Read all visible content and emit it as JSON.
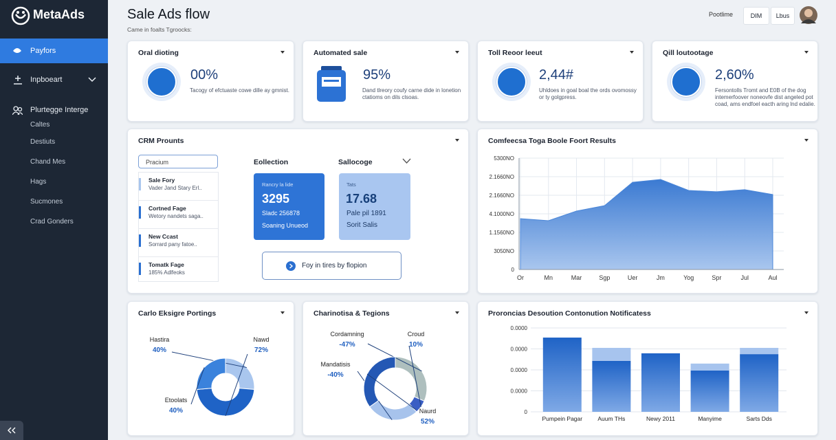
{
  "sidebar": {
    "logo": "MetaAds",
    "items": [
      "Payfors",
      "Inpboeart"
    ],
    "section": "Plurtegge Interge",
    "subitems": [
      "Caltes",
      "Destiuts",
      "Chand Mes",
      "Hags",
      "Sucmones",
      "Crad Gonders"
    ]
  },
  "header": {
    "title": "Sale Ads flow",
    "subtitle": "Came in foalts Tgroocks:",
    "status": "Pootlime",
    "buttons": [
      "DIM",
      "Lbus"
    ]
  },
  "kpis": [
    {
      "title": "Oral dioting",
      "value": "00%",
      "description": "Tacogy of efctuaste cowe dille ay gmnist."
    },
    {
      "title": "Automated sale",
      "value": "95%",
      "description": "Dand tlreory coufy carne dide in lonetion ctatioms on dils clsoas."
    },
    {
      "title": "Toll Reoor leeut",
      "value": "2,44#",
      "description": "Uhldoes in goal boal the ords ovomossy or ty golgpress."
    },
    {
      "title": "Qill loutootage",
      "value": "2,60%",
      "description": "Fersontolls Tromt and E0B of the dog intemerfoover noneovfe dist angeled pot coad, ams endfoel eacth aring lnd edalie."
    }
  ],
  "crm": {
    "title": "CRM Prounts",
    "search": "Pracium",
    "list": [
      {
        "title": "Sale Fory",
        "subtitle": "Vader Jand Stary Erl.."
      },
      {
        "title": "Cortned Fage",
        "subtitle": "Wetory nandets saga.."
      },
      {
        "title": "New Ccast",
        "subtitle": "Sorrard pany fatoe.."
      },
      {
        "title": "Tomatk Fage",
        "subtitle": "185% Adlfeoks"
      }
    ],
    "columns": [
      "Eollection",
      "Sallocoge"
    ],
    "tiles": [
      {
        "label": "Rancry la lide",
        "value": "3295",
        "line1": "Sladc 256878",
        "line2": "Soaning Unueod"
      },
      {
        "label": "Tats",
        "value": "17.68",
        "line1": "Pale pil 1891",
        "line2": "Sorit Salis"
      }
    ],
    "button": "Foy in tires by flopion"
  },
  "chart_data": [
    {
      "type": "area",
      "title": "Comfeecsa Toga Boole Foort Results",
      "categories": [
        "Or",
        "Mn",
        "Mar",
        "Sgp",
        "Uer",
        "Jm",
        "Yog",
        "Spr",
        "Jul",
        "Aul"
      ],
      "values": [
        2.74,
        2.63,
        3.15,
        3.44,
        4.7,
        4.85,
        4.26,
        4.19,
        4.3,
        4.04
      ],
      "color": "#4a86d8",
      "ylim": [
        0,
        6
      ],
      "yticks": [
        {
          "value": 0,
          "label": "0"
        },
        {
          "value": 1,
          "label": "3050NO"
        },
        {
          "value": 2,
          "label": "1.1560NO"
        },
        {
          "value": 3,
          "label": "4.1000NO"
        },
        {
          "value": 4,
          "label": "2.1660NO"
        },
        {
          "value": 5,
          "label": "2.1660NO"
        },
        {
          "value": 6,
          "label": "5300NO"
        }
      ],
      "grid": true
    },
    {
      "type": "donut",
      "title": "Carlo Eksigre Portings",
      "categories": [
        "Hastira",
        "Nawd",
        "Etoolats"
      ],
      "values": [
        40,
        72,
        40
      ],
      "value_labels": [
        "40%",
        "72%",
        "40%"
      ],
      "colors": [
        "#a9c6ee",
        "#1f63c6",
        "#3a82dc"
      ]
    },
    {
      "type": "donut",
      "title": "Charinotisa & Tegions",
      "categories": [
        "Cordamning",
        "Croud",
        "Mandatisis",
        "Naurd"
      ],
      "values": [
        -47,
        10,
        -40,
        52
      ],
      "value_labels": [
        "-47%",
        "10%",
        "-40%",
        "52%"
      ],
      "colors": [
        "#aebfbe",
        "#3a5ec4",
        "#a7c3ec",
        "#2458b4"
      ]
    },
    {
      "type": "stacked-bar",
      "title": "Proroncias Desoution Contonution Notificatess",
      "categories": [
        "Pumpein Pagar",
        "Auum THs",
        "Newy 2011",
        "Manyime",
        "Sarts Dds"
      ],
      "series": [
        {
          "color": "#2f74d0",
          "values": [
            3.54,
            2.43,
            2.79,
            1.97,
            2.75
          ]
        },
        {
          "color": "#a7c4ee",
          "values": [
            null,
            0.62,
            null,
            0.33,
            0.3
          ]
        }
      ],
      "ylim": [
        0,
        4
      ],
      "yticks": [
        {
          "value": 0,
          "label": "0"
        },
        {
          "value": 1,
          "label": "0.0000"
        },
        {
          "value": 2,
          "label": "0.0000"
        },
        {
          "value": 3,
          "label": "0.0000"
        },
        {
          "value": 4,
          "label": "0.0000"
        }
      ],
      "grid": true
    }
  ]
}
